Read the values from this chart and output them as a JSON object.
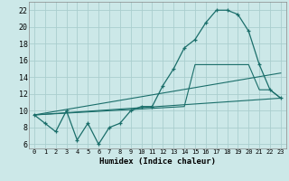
{
  "xlabel": "Humidex (Indice chaleur)",
  "background_color": "#cce8e8",
  "line_color": "#1a6e6a",
  "grid_color": "#aacece",
  "xlim": [
    -0.5,
    23.5
  ],
  "ylim": [
    5.5,
    23.0
  ],
  "xticks": [
    0,
    1,
    2,
    3,
    4,
    5,
    6,
    7,
    8,
    9,
    10,
    11,
    12,
    13,
    14,
    15,
    16,
    17,
    18,
    19,
    20,
    21,
    22,
    23
  ],
  "yticks": [
    6,
    8,
    10,
    12,
    14,
    16,
    18,
    20,
    22
  ],
  "main_y": [
    9.5,
    8.5,
    7.5,
    10.0,
    6.5,
    8.5,
    6.0,
    8.0,
    8.5,
    10.0,
    10.5,
    10.5,
    13.0,
    15.0,
    17.5,
    18.5,
    20.5,
    22.0,
    22.0,
    21.5,
    19.5,
    15.5,
    12.5,
    11.5
  ],
  "line2_x": [
    0,
    14,
    15,
    16,
    17,
    18,
    19,
    20,
    21,
    22,
    23
  ],
  "line2_y": [
    9.5,
    10.5,
    15.5,
    15.5,
    15.5,
    15.5,
    15.5,
    15.5,
    12.5,
    12.5,
    11.5
  ],
  "line3_x": [
    0,
    23
  ],
  "line3_y": [
    9.5,
    14.5
  ],
  "line4_x": [
    0,
    23
  ],
  "line4_y": [
    9.5,
    11.5
  ]
}
